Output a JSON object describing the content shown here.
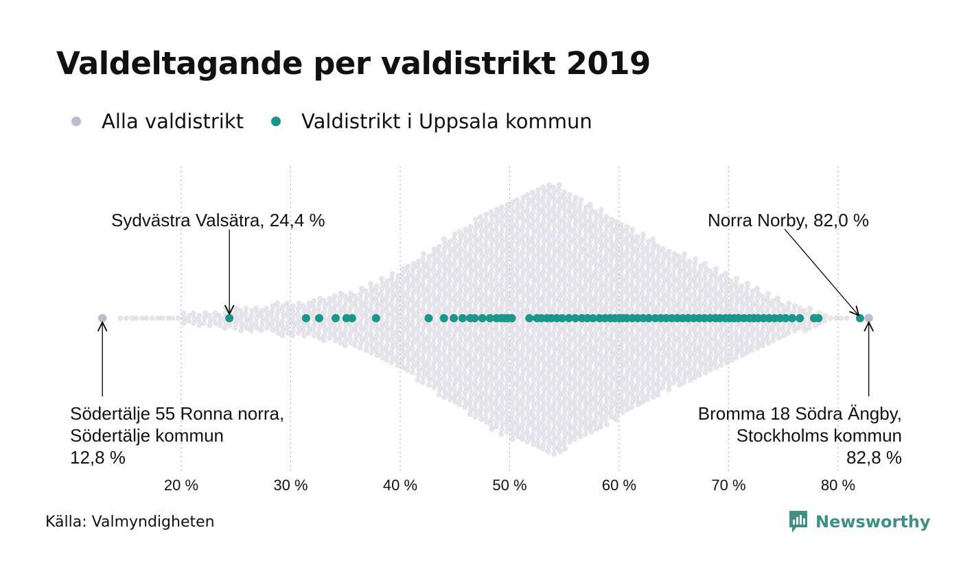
{
  "title": "Valdeltagande per valdistrikt 2019",
  "legend": [
    {
      "label": "Alla valdistrikt",
      "color": "#bdbccb"
    },
    {
      "label": "Valdistrikt i Uppsala kommun",
      "color": "#1b968a"
    }
  ],
  "source": "Källa: Valmyndigheten",
  "brand": "Newsworthy",
  "colors": {
    "all": "#d6d5df",
    "all_edge": "#c9c8d4",
    "uppsala": "#1b968a",
    "extreme": "#bdbccb",
    "grid": "#9a9a9a",
    "brand": "#3f8f84"
  },
  "chart_data": {
    "type": "scatter",
    "subtype": "beeswarm",
    "x_axis": {
      "ticks": [
        20,
        30,
        40,
        50,
        60,
        70,
        80
      ],
      "tick_labels": [
        "20 %",
        "30 %",
        "40 %",
        "50 %",
        "60 %",
        "70 %",
        "80 %"
      ],
      "range": [
        12,
        84
      ],
      "grid": "dotted vertical"
    },
    "series": [
      {
        "name": "Alla valdistrikt",
        "distribution_profile": [
          [
            14.5,
            0.5
          ],
          [
            20,
            1
          ],
          [
            24,
            2
          ],
          [
            28,
            3
          ],
          [
            32,
            4
          ],
          [
            36,
            6
          ],
          [
            40,
            10
          ],
          [
            44,
            16
          ],
          [
            48,
            22
          ],
          [
            52,
            26
          ],
          [
            54,
            28
          ],
          [
            56,
            25
          ],
          [
            60,
            20
          ],
          [
            64,
            15
          ],
          [
            68,
            11
          ],
          [
            72,
            7
          ],
          [
            76,
            3
          ],
          [
            79,
            1
          ],
          [
            81,
            0.5
          ]
        ],
        "extremes": [
          12.8,
          82.8
        ]
      },
      {
        "name": "Valdistrikt i Uppsala kommun",
        "values": [
          24.4,
          31.4,
          32.6,
          34.1,
          35.1,
          35.6,
          37.8,
          42.6,
          44,
          44.9,
          45.7,
          46.4,
          46.8,
          47.5,
          48.2,
          48.8,
          49.2,
          49.5,
          49.8,
          50.2,
          51.8,
          52.5,
          52.9,
          53.4,
          53.8,
          54.3,
          54.8,
          55.4,
          56,
          56.6,
          57.1,
          57.6,
          58.2,
          58.7,
          59.2,
          59.6,
          60,
          60.3,
          60.7,
          61.2,
          61.7,
          62.2,
          62.7,
          63.3,
          63.8,
          64.3,
          64.8,
          65.3,
          65.8,
          66.3,
          66.8,
          67.3,
          67.8,
          68.3,
          68.8,
          69.2,
          69.7,
          70.1,
          70.5,
          70.9,
          71.4,
          71.9,
          72.3,
          72.7,
          73.2,
          73.7,
          74.2,
          74.7,
          75.2,
          75.8,
          76.5,
          77.8,
          78.2,
          82.0
        ]
      }
    ],
    "annotations": [
      {
        "lines": [
          "Sydvästra Valsätra, 24,4 %"
        ],
        "value": 24.4,
        "position": "top-left"
      },
      {
        "lines": [
          "Norra Norby, 82,0 %"
        ],
        "value": 82.0,
        "position": "top-right"
      },
      {
        "lines": [
          "Södertälje 55 Ronna norra,",
          "Södertälje kommun",
          "12,8 %"
        ],
        "value": 12.8,
        "position": "bottom-left"
      },
      {
        "lines": [
          "Bromma 18 Södra Ängby,",
          "Stockholms kommun",
          "82,8 %"
        ],
        "value": 82.8,
        "position": "bottom-right"
      }
    ]
  }
}
